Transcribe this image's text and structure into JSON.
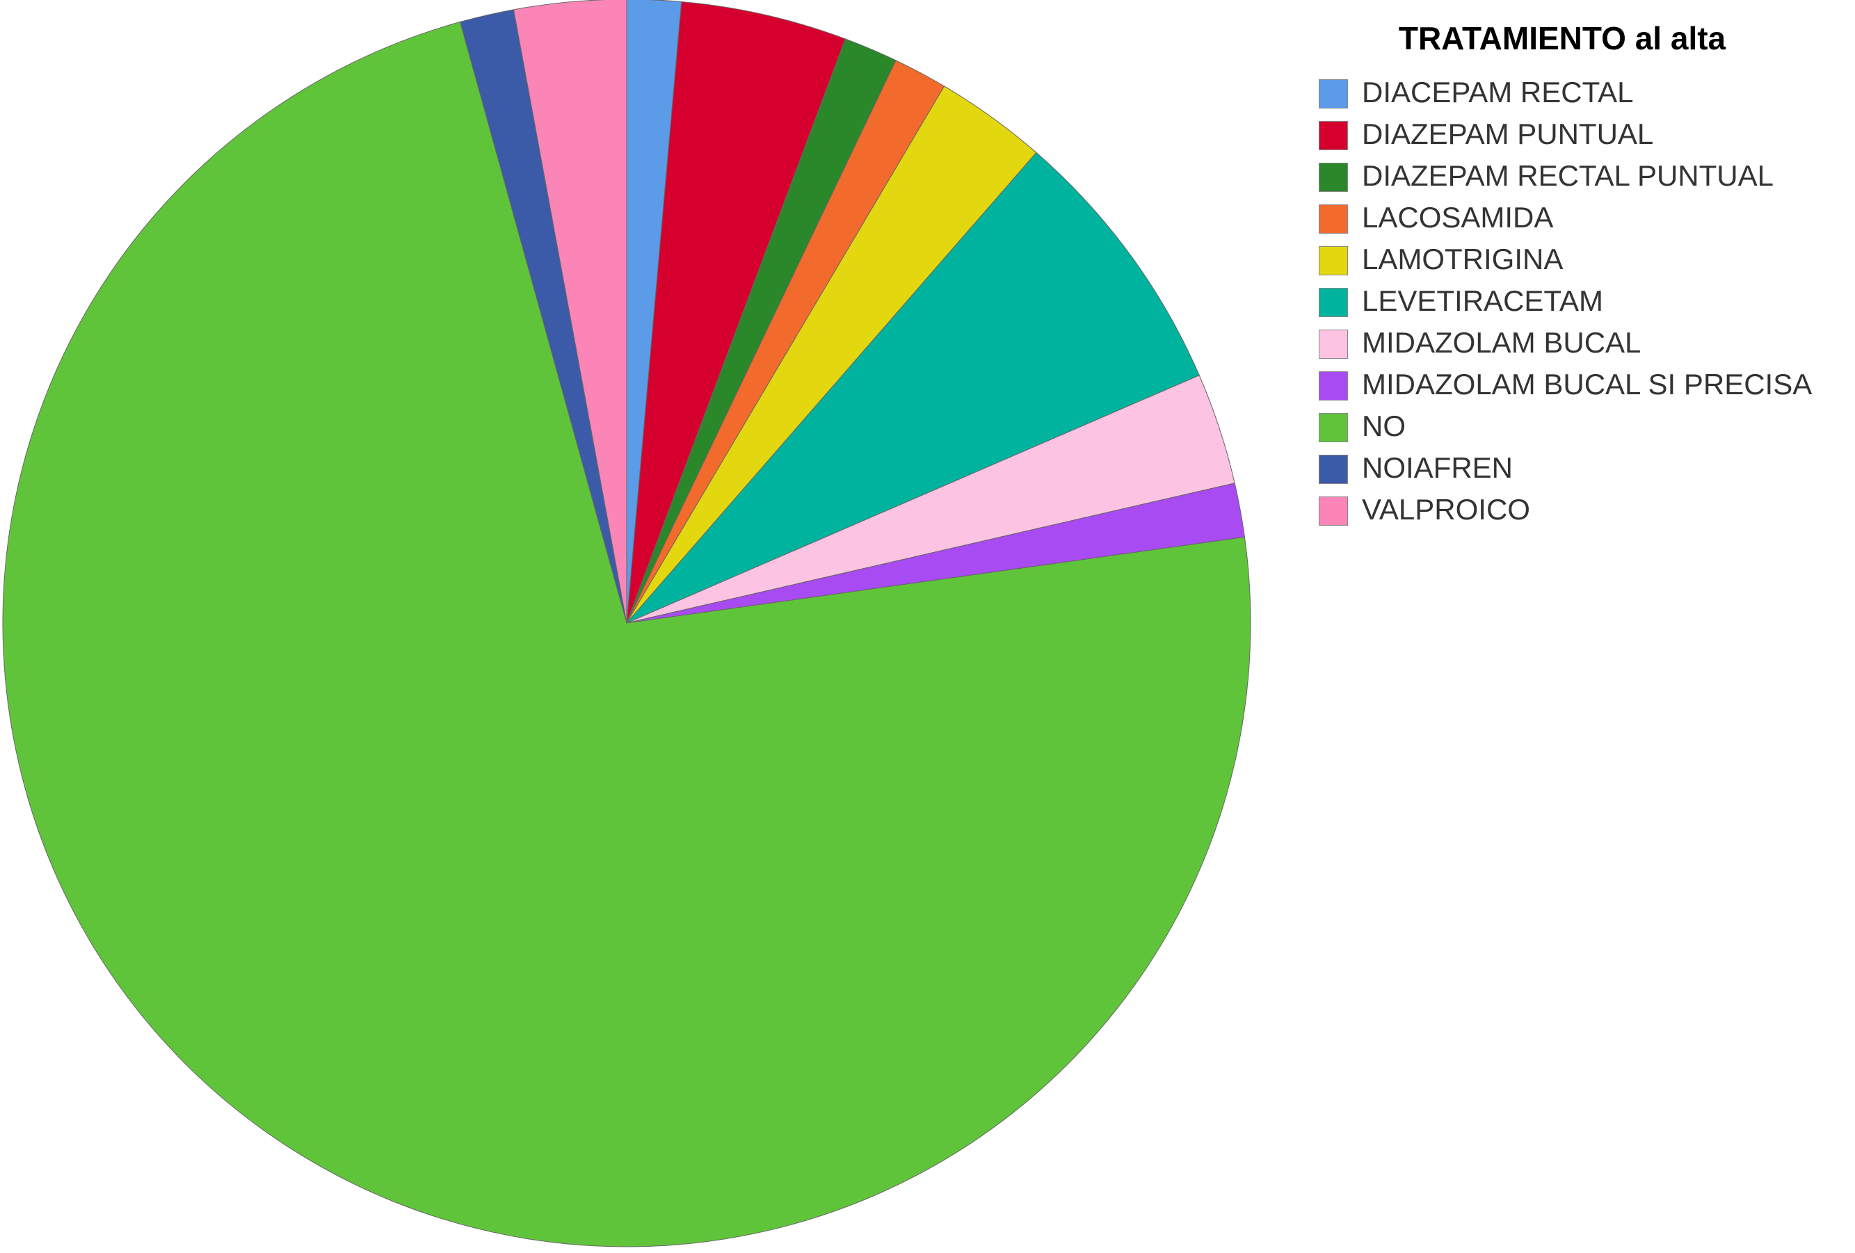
{
  "chart_data": {
    "type": "pie",
    "legend_title": "TRATAMIENTO al alta",
    "categories": [
      "DIACEPAM RECTAL",
      "DIAZEPAM PUNTUAL",
      "DIAZEPAM RECTAL PUNTUAL",
      "LACOSAMIDA",
      "LAMOTRIGINA",
      "LEVETIRACETAM",
      "MIDAZOLAM BUCAL",
      "MIDAZOLAM BUCAL SI PRECISA",
      "NO",
      "NOIAFREN",
      "VALPROICO"
    ],
    "values": [
      1.4,
      4.3,
      1.4,
      1.4,
      2.9,
      7.1,
      2.9,
      1.4,
      72.9,
      1.4,
      2.9
    ],
    "colors": [
      "#5b9be8",
      "#d6002f",
      "#2a882a",
      "#f26a2c",
      "#e3d80f",
      "#00b39e",
      "#fcc3e3",
      "#a84bf2",
      "#60c43b",
      "#3b5aa8",
      "#fb85b6"
    ],
    "legend": "top-right"
  }
}
